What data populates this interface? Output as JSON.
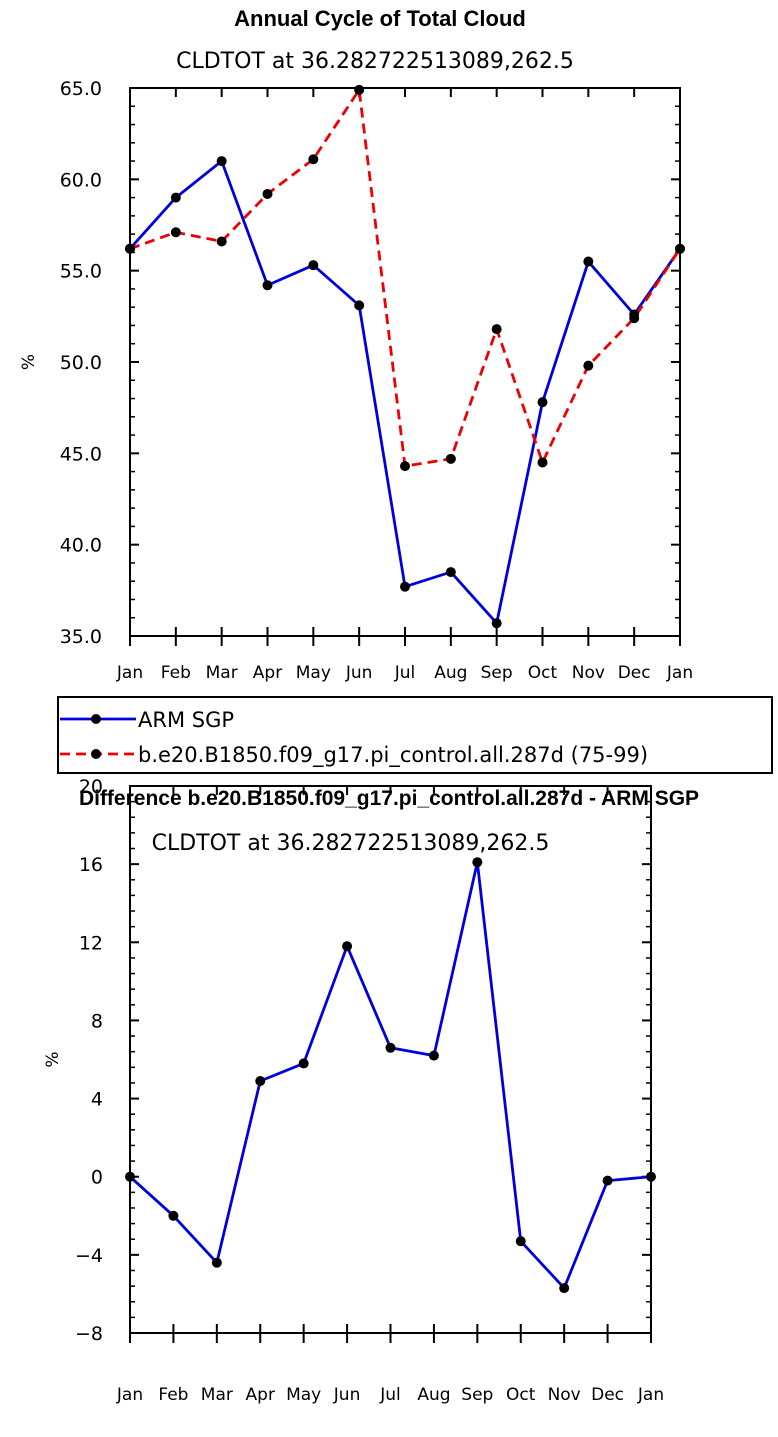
{
  "chart_data": [
    {
      "type": "line",
      "title": "Annual Cycle of Total Cloud",
      "subtitle": "CLDTOT at 36.282722513089,262.5",
      "xlabel": "",
      "ylabel": "%",
      "categories": [
        "Jan",
        "Feb",
        "Mar",
        "Apr",
        "May",
        "Jun",
        "Jul",
        "Aug",
        "Sep",
        "Oct",
        "Nov",
        "Dec",
        "Jan"
      ],
      "ylim": [
        35,
        65
      ],
      "ytick_values": [
        35,
        40,
        45,
        50,
        55,
        60,
        65
      ],
      "ytick_labels": [
        "35.0",
        "40.0",
        "45.0",
        "50.0",
        "55.0",
        "60.0",
        "65.0"
      ],
      "legend_placement": "bottom",
      "series": [
        {
          "name": "ARM SGP",
          "color": "#0000dd",
          "style": "solid",
          "values": [
            56.2,
            59.0,
            61.0,
            54.2,
            55.3,
            53.1,
            37.7,
            38.5,
            35.7,
            47.8,
            55.5,
            52.6,
            56.2
          ]
        },
        {
          "name": "b.e20.B1850.f09_g17.pi_control.all.287d (75-99)",
          "color": "#ee0000",
          "style": "dashed",
          "values": [
            56.2,
            57.1,
            56.6,
            59.2,
            61.1,
            64.9,
            44.3,
            44.7,
            51.8,
            44.5,
            49.8,
            52.4,
            56.2
          ]
        }
      ]
    },
    {
      "type": "line",
      "title": "Difference b.e20.B1850.f09_g17.pi_control.all.287d - ARM SGP",
      "subtitle": "CLDTOT at 36.282722513089,262.5",
      "xlabel": "",
      "ylabel": "%",
      "categories": [
        "Jan",
        "Feb",
        "Mar",
        "Apr",
        "May",
        "Jun",
        "Jul",
        "Aug",
        "Sep",
        "Oct",
        "Nov",
        "Dec",
        "Jan"
      ],
      "ylim": [
        -8,
        20
      ],
      "ytick_values": [
        -8,
        -4,
        0,
        4,
        8,
        12,
        16,
        20
      ],
      "ytick_labels": [
        "−8",
        "−4",
        "0",
        "4",
        "8",
        "12",
        "16",
        "20"
      ],
      "series": [
        {
          "color": "#0000dd",
          "style": "solid",
          "values": [
            0.0,
            -2.0,
            -4.4,
            4.9,
            5.8,
            11.8,
            6.6,
            6.2,
            16.1,
            -3.3,
            -5.7,
            -0.2,
            0.0
          ]
        }
      ]
    }
  ]
}
